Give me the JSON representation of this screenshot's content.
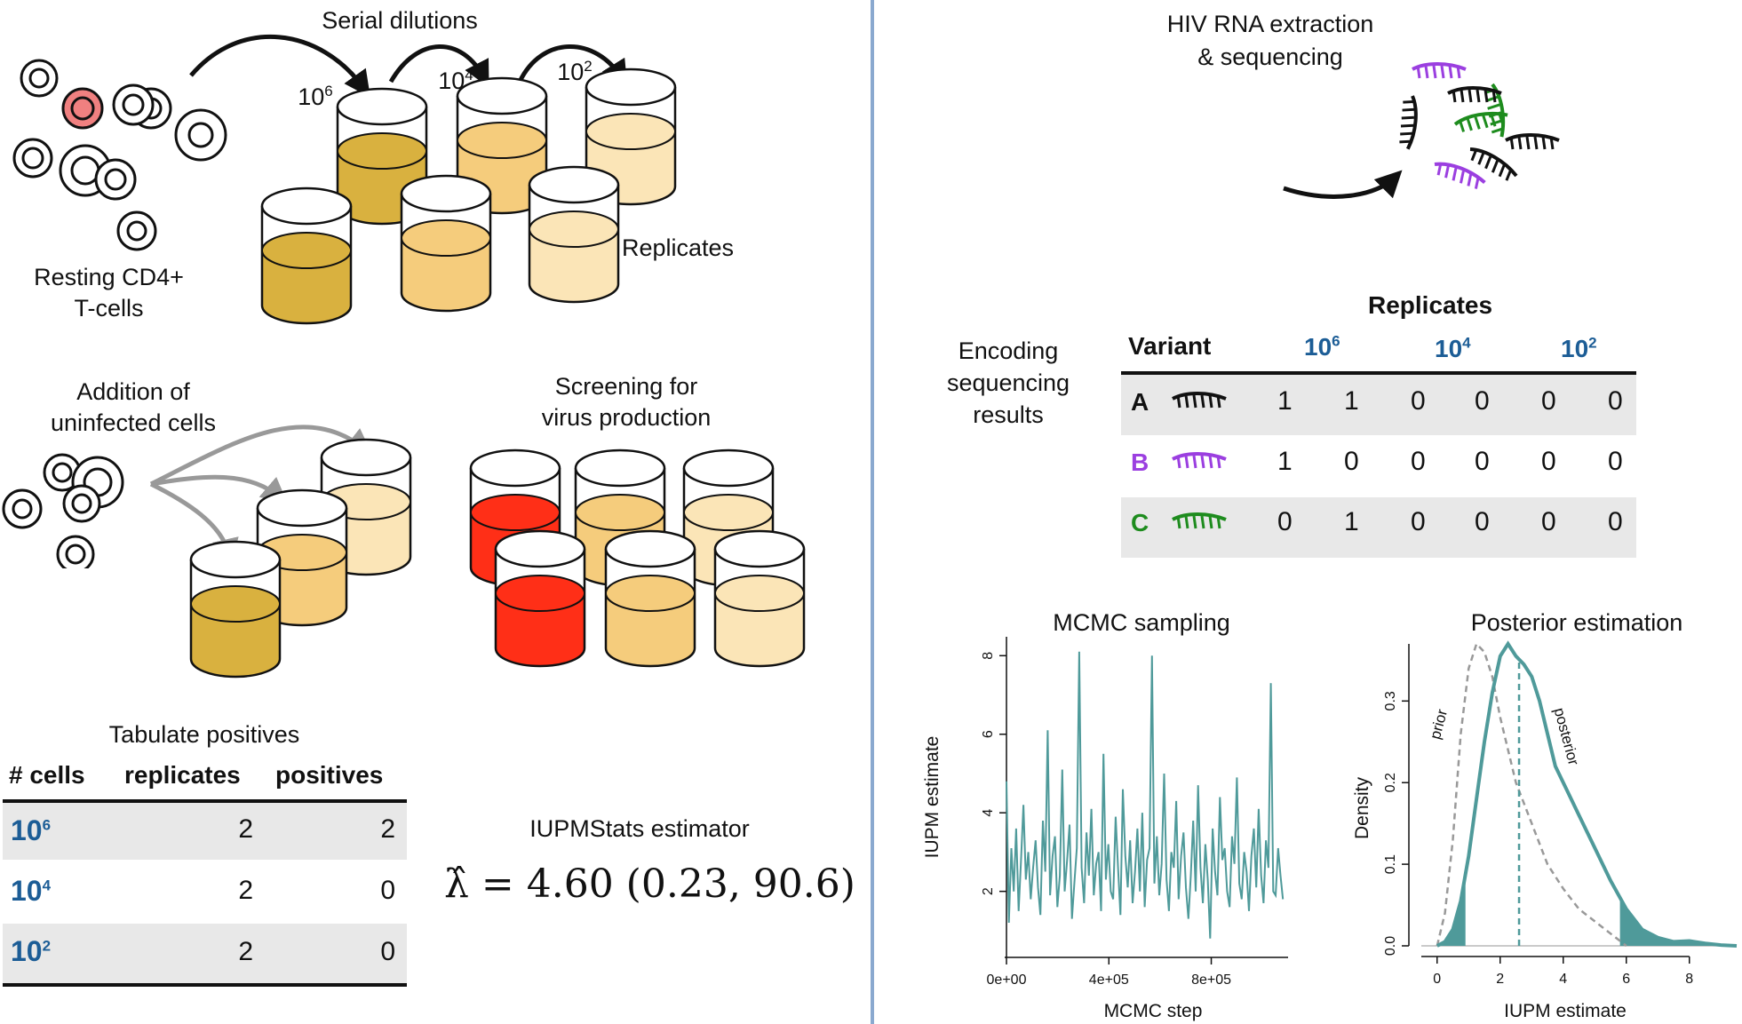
{
  "left": {
    "serial_dilutions": "Serial dilutions",
    "dil_labels": [
      {
        "base": "10",
        "exp": "6"
      },
      {
        "base": "10",
        "exp": "4"
      },
      {
        "base": "10",
        "exp": "2"
      }
    ],
    "resting_line1": "Resting CD4+",
    "resting_line2": "T-cells",
    "replicates_label": "Replicates",
    "addition_line1": "Addition of",
    "addition_line2": "uninfected cells",
    "screening_line1": "Screening for",
    "screening_line2": "virus production",
    "tabulate_title": "Tabulate positives",
    "table_headers": [
      "# cells",
      "replicates",
      "positives"
    ],
    "table_rows": [
      {
        "base": "10",
        "exp": "6",
        "replicates": "2",
        "positives": "2"
      },
      {
        "base": "10",
        "exp": "4",
        "replicates": "2",
        "positives": "0"
      },
      {
        "base": "10",
        "exp": "2",
        "replicates": "2",
        "positives": "0"
      }
    ],
    "estimator_title": "IUPMStats estimator",
    "estimator_formula": "λ̂ = 4.60 (0.23, 90.6)"
  },
  "right": {
    "extraction_line1": "HIV RNA extraction",
    "extraction_line2": "& sequencing",
    "encoding_line1": "Encoding",
    "encoding_line2": "sequencing",
    "encoding_line3": "results",
    "replicates_title": "Replicates",
    "variant_header": "Variant",
    "dilution_headers": [
      {
        "base": "10",
        "exp": "6"
      },
      {
        "base": "10",
        "exp": "4"
      },
      {
        "base": "10",
        "exp": "2"
      }
    ],
    "variants": [
      {
        "name": "A",
        "color": "#111111",
        "values": [
          "1",
          "1",
          "0",
          "0",
          "0",
          "0"
        ]
      },
      {
        "name": "B",
        "color": "#9b3fe0",
        "values": [
          "1",
          "0",
          "0",
          "0",
          "0",
          "0"
        ]
      },
      {
        "name": "C",
        "color": "#1e8c1e",
        "values": [
          "0",
          "1",
          "0",
          "0",
          "0",
          "0"
        ]
      }
    ]
  },
  "chart_data": [
    {
      "type": "line",
      "title": "MCMC sampling",
      "xlabel": "MCMC step",
      "ylabel": "IUPM estimate",
      "x_ticks": [
        "0e+00",
        "4e+05",
        "8e+05"
      ],
      "y_ticks": [
        "2",
        "4",
        "6",
        "8"
      ],
      "xlim": [
        0,
        1100000
      ],
      "ylim": [
        0.5,
        8.3
      ],
      "color": "#4f9a9a",
      "series": [
        {
          "values": [
            4.8,
            1.2,
            3.1,
            2.0,
            3.6,
            1.5,
            2.8,
            4.2,
            2.3,
            3.0,
            1.8,
            2.6,
            3.3,
            2.1,
            1.4,
            3.8,
            2.5,
            6.1,
            1.9,
            2.9,
            3.4,
            1.6,
            2.4,
            5.1,
            2.0,
            2.8,
            3.7,
            1.3,
            2.2,
            3.1,
            8.1,
            2.6,
            1.7,
            3.5,
            2.4,
            4.1,
            1.9,
            2.7,
            3.0,
            1.5,
            5.5,
            2.3,
            3.2,
            2.0,
            1.8,
            3.9,
            2.6,
            1.4,
            4.6,
            2.9,
            2.1,
            3.3,
            1.7,
            2.5,
            3.6,
            2.0,
            4.0,
            1.6,
            2.8,
            3.1,
            8.0,
            2.2,
            3.4,
            1.9,
            2.7,
            5.0,
            2.3,
            1.5,
            3.0,
            2.6,
            4.3,
            1.8,
            2.9,
            3.5,
            2.1,
            1.3,
            2.4,
            3.8,
            2.0,
            4.7,
            2.6,
            1.7,
            3.2,
            2.3,
            0.8,
            3.6,
            2.5,
            1.9,
            4.4,
            2.8,
            3.1,
            2.0,
            1.6,
            3.4,
            2.7,
            4.9,
            2.2,
            1.8,
            3.0,
            2.5,
            1.5,
            2.9,
            3.6,
            2.1,
            4.1,
            2.4,
            1.7,
            3.3,
            2.6,
            7.3,
            2.0,
            1.9,
            3.1,
            2.4,
            1.8
          ]
        }
      ]
    },
    {
      "type": "area",
      "title": "Posterior estimation",
      "xlabel": "IUPM estimate",
      "ylabel": "Density",
      "x_ticks": [
        "0",
        "2",
        "4",
        "6",
        "8"
      ],
      "y_ticks": [
        "0.0",
        "0.1",
        "0.2",
        "0.3"
      ],
      "xlim": [
        -0.5,
        9.5
      ],
      "ylim": [
        0,
        0.37
      ],
      "color": "#4f9a9a",
      "prior_color": "#999999",
      "series": [
        {
          "name": "posterior",
          "x": [
            0.0,
            0.25,
            0.5,
            0.75,
            1.0,
            1.25,
            1.5,
            1.75,
            2.0,
            2.25,
            2.5,
            2.75,
            3.0,
            3.25,
            3.5,
            3.75,
            4.0,
            4.5,
            5.0,
            5.5,
            6.0,
            6.5,
            7.0,
            7.5,
            8.0,
            8.5,
            9.0,
            9.5
          ],
          "y": [
            0.0,
            0.005,
            0.02,
            0.055,
            0.11,
            0.18,
            0.25,
            0.31,
            0.355,
            0.37,
            0.355,
            0.345,
            0.33,
            0.3,
            0.26,
            0.22,
            0.2,
            0.16,
            0.12,
            0.08,
            0.045,
            0.02,
            0.01,
            0.005,
            0.006,
            0.003,
            0.001,
            0.0
          ]
        },
        {
          "name": "prior",
          "x": [
            0.0,
            0.25,
            0.5,
            0.75,
            1.0,
            1.25,
            1.5,
            1.75,
            2.0,
            2.5,
            3.0,
            3.5,
            4.0,
            4.5,
            5.0,
            5.5,
            6.0
          ],
          "y": [
            0.0,
            0.04,
            0.13,
            0.26,
            0.34,
            0.37,
            0.36,
            0.33,
            0.28,
            0.2,
            0.15,
            0.1,
            0.07,
            0.045,
            0.03,
            0.015,
            0.0
          ]
        }
      ],
      "annotations": [
        "prior",
        "posterior"
      ],
      "point_estimate": 2.6,
      "credible_interval": [
        0.9,
        5.8
      ]
    }
  ]
}
